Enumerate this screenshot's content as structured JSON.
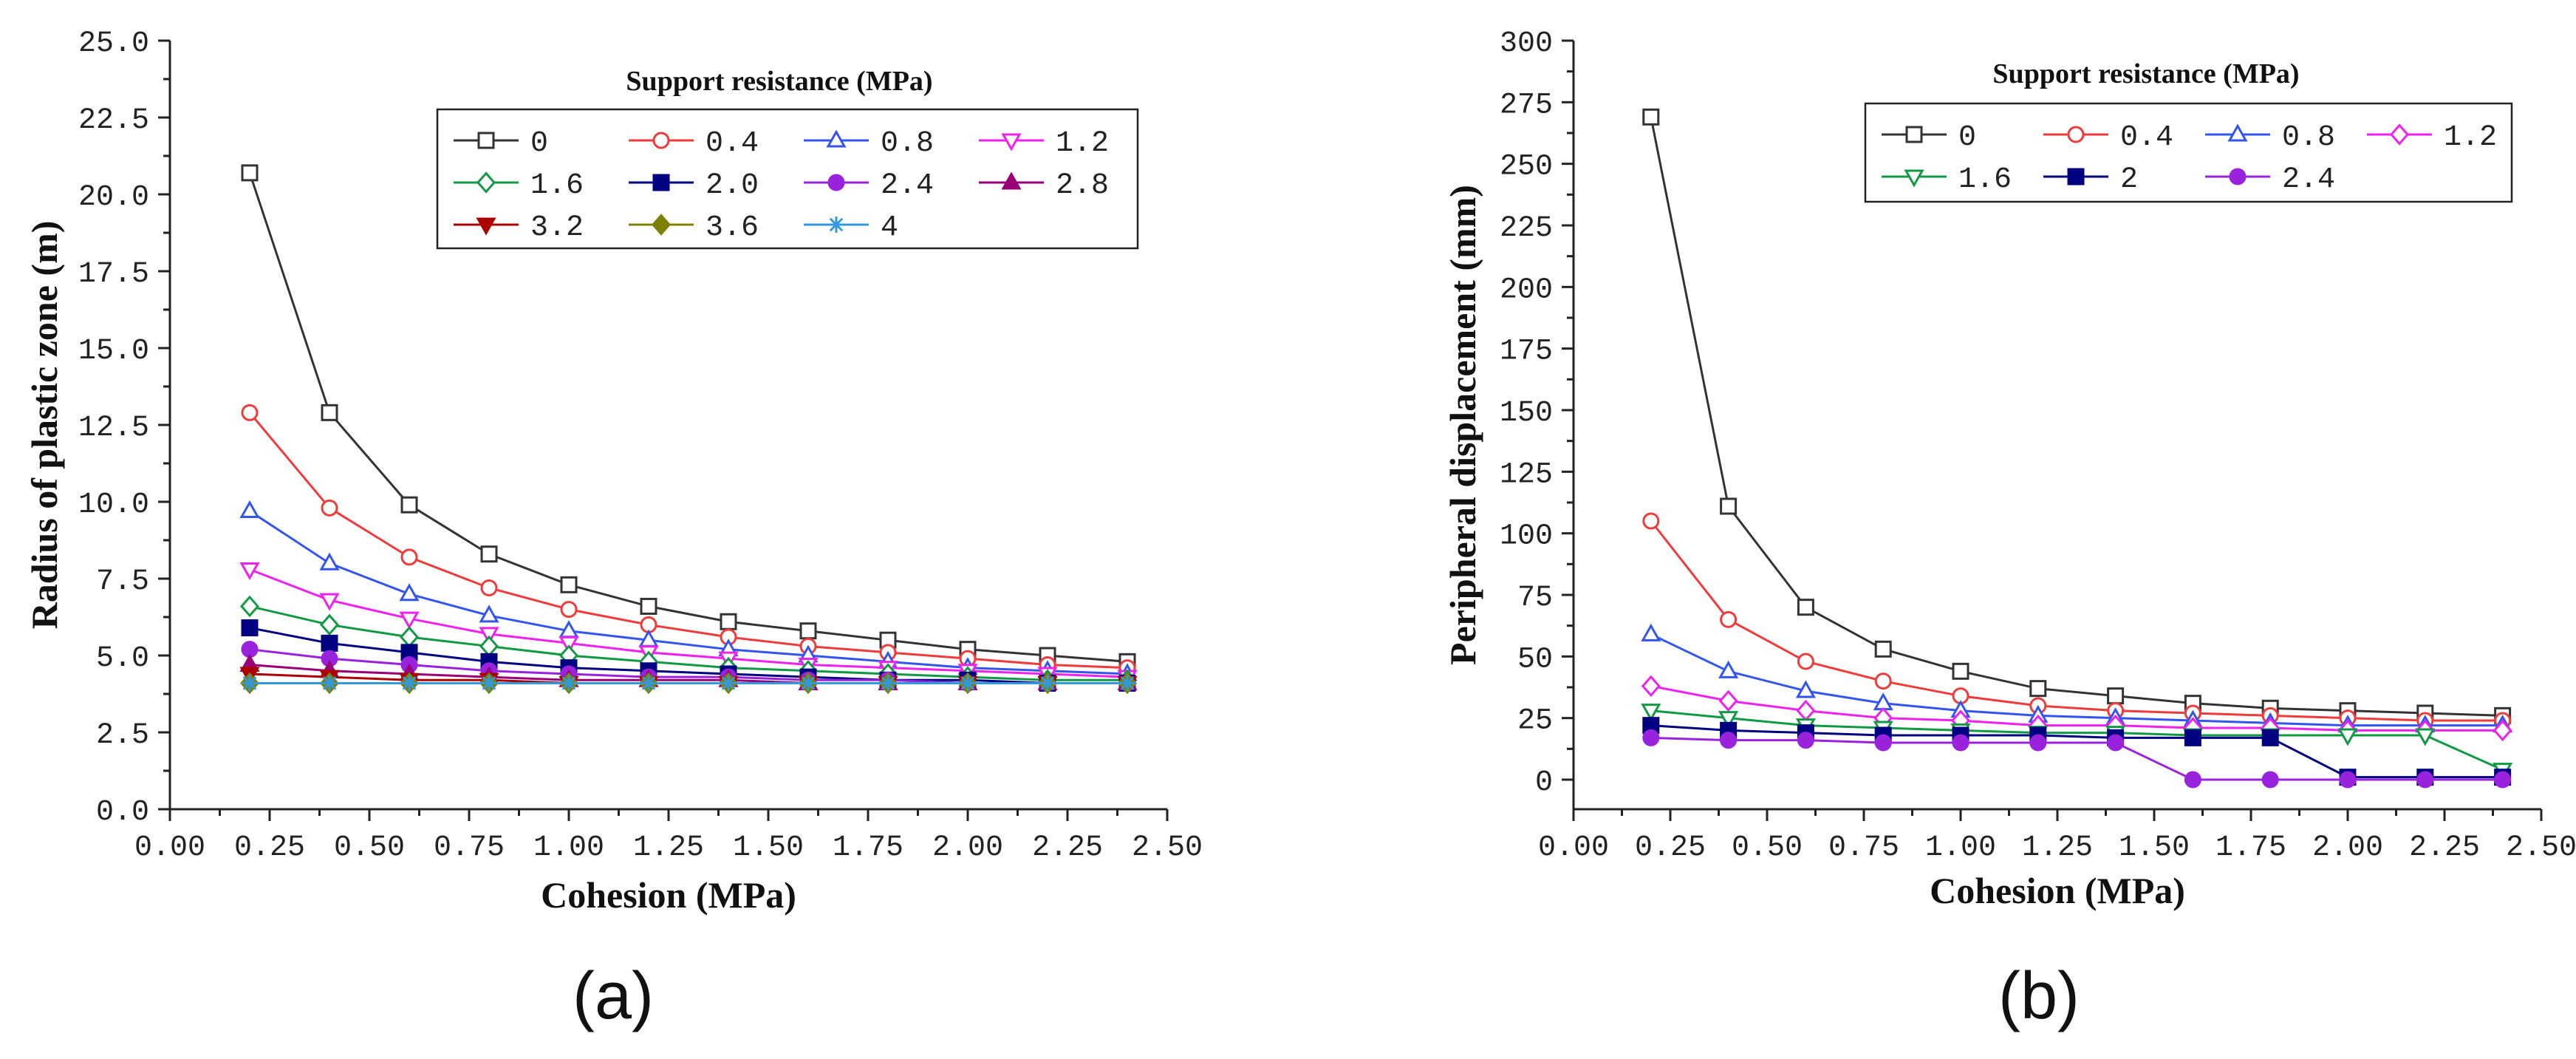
{
  "chart_data": [
    {
      "type": "line",
      "panel_label": "(a)",
      "xlabel": "Cohesion (MPa)",
      "ylabel": "Radius of plastic zone (m)",
      "xlim": [
        0,
        2.5
      ],
      "ylim": [
        0,
        25
      ],
      "x_ticks": [
        0,
        0.25,
        0.5,
        0.75,
        1.0,
        1.25,
        1.5,
        1.75,
        2.0,
        2.25,
        2.5
      ],
      "x_tick_labels": [
        "0.00",
        "0.25",
        "0.50",
        "0.75",
        "1.00",
        "1.25",
        "1.50",
        "1.75",
        "2.00",
        "2.25",
        "2.50"
      ],
      "y_ticks": [
        0,
        2.5,
        5,
        7.5,
        10,
        12.5,
        15,
        17.5,
        20,
        22.5,
        25
      ],
      "y_tick_labels": [
        "0.0",
        "2.5",
        "5.0",
        "7.5",
        "10.0",
        "12.5",
        "15.0",
        "17.5",
        "20.0",
        "22.5",
        "25.0"
      ],
      "legend_title": "Support resistance (MPa)",
      "legend_position": "top-right",
      "x": [
        0.2,
        0.4,
        0.6,
        0.8,
        1.0,
        1.2,
        1.4,
        1.6,
        1.8,
        2.0,
        2.2,
        2.4
      ],
      "series": [
        {
          "name": "0",
          "color": "#333333",
          "marker": "square-open",
          "values": [
            20.7,
            12.9,
            9.9,
            8.3,
            7.3,
            6.6,
            6.1,
            5.8,
            5.5,
            5.2,
            5.0,
            4.8
          ]
        },
        {
          "name": "0.4",
          "color": "#ee3b3b",
          "marker": "circle-open",
          "values": [
            12.9,
            9.8,
            8.2,
            7.2,
            6.5,
            6.0,
            5.6,
            5.3,
            5.1,
            4.9,
            4.7,
            4.6
          ]
        },
        {
          "name": "0.8",
          "color": "#3355ee",
          "marker": "triangle-up-open",
          "values": [
            9.7,
            8.0,
            7.0,
            6.3,
            5.8,
            5.5,
            5.2,
            5.0,
            4.8,
            4.6,
            4.5,
            4.4
          ]
        },
        {
          "name": "1.2",
          "color": "#ee22ee",
          "marker": "triangle-down-open",
          "values": [
            7.8,
            6.8,
            6.2,
            5.7,
            5.4,
            5.1,
            4.9,
            4.7,
            4.6,
            4.5,
            4.4,
            4.3
          ]
        },
        {
          "name": "1.6",
          "color": "#119944",
          "marker": "diamond-open",
          "values": [
            6.6,
            6.0,
            5.6,
            5.3,
            5.0,
            4.8,
            4.6,
            4.5,
            4.4,
            4.3,
            4.2,
            4.2
          ]
        },
        {
          "name": "2.0",
          "color": "#000080",
          "marker": "square-filled",
          "values": [
            5.9,
            5.4,
            5.1,
            4.8,
            4.6,
            4.5,
            4.4,
            4.3,
            4.2,
            4.2,
            4.1,
            4.1
          ]
        },
        {
          "name": "2.4",
          "color": "#9922dd",
          "marker": "circle-filled",
          "values": [
            5.2,
            4.9,
            4.7,
            4.5,
            4.4,
            4.3,
            4.3,
            4.2,
            4.2,
            4.1,
            4.1,
            4.1
          ]
        },
        {
          "name": "2.8",
          "color": "#990077",
          "marker": "triangle-up-filled",
          "values": [
            4.7,
            4.5,
            4.4,
            4.3,
            4.2,
            4.2,
            4.2,
            4.1,
            4.1,
            4.1,
            4.1,
            4.1
          ]
        },
        {
          "name": "3.2",
          "color": "#aa0000",
          "marker": "triangle-down-filled",
          "values": [
            4.4,
            4.3,
            4.2,
            4.2,
            4.1,
            4.1,
            4.1,
            4.1,
            4.1,
            4.1,
            4.1,
            4.1
          ]
        },
        {
          "name": "3.6",
          "color": "#808000",
          "marker": "diamond-filled",
          "values": [
            4.1,
            4.1,
            4.1,
            4.1,
            4.1,
            4.1,
            4.1,
            4.1,
            4.1,
            4.1,
            4.1,
            4.1
          ]
        },
        {
          "name": "4",
          "color": "#3399dd",
          "marker": "star",
          "values": [
            4.1,
            4.1,
            4.1,
            4.1,
            4.1,
            4.1,
            4.1,
            4.1,
            4.1,
            4.1,
            4.1,
            4.1
          ]
        }
      ]
    },
    {
      "type": "line",
      "panel_label": "(b)",
      "xlabel": "Cohesion (MPa)",
      "ylabel": "Peripheral displacement (mm)",
      "xlim": [
        0,
        2.5
      ],
      "ylim": [
        -12,
        300
      ],
      "x_ticks": [
        0,
        0.25,
        0.5,
        0.75,
        1.0,
        1.25,
        1.5,
        1.75,
        2.0,
        2.25,
        2.5
      ],
      "x_tick_labels": [
        "0.00",
        "0.25",
        "0.50",
        "0.75",
        "1.00",
        "1.25",
        "1.50",
        "1.75",
        "2.00",
        "2.25",
        "2.50"
      ],
      "y_ticks": [
        0,
        25,
        50,
        75,
        100,
        125,
        150,
        175,
        200,
        225,
        250,
        275,
        300
      ],
      "y_tick_labels": [
        "0",
        "25",
        "50",
        "75",
        "100",
        "125",
        "150",
        "175",
        "200",
        "225",
        "250",
        "275",
        "300"
      ],
      "legend_title": "Support resistance (MPa)",
      "legend_position": "top-right",
      "x": [
        0.2,
        0.4,
        0.6,
        0.8,
        1.0,
        1.2,
        1.4,
        1.6,
        1.8,
        2.0,
        2.2,
        2.4
      ],
      "series": [
        {
          "name": "0",
          "color": "#333333",
          "marker": "square-open",
          "values": [
            269,
            111,
            70,
            53,
            44,
            37,
            34,
            31,
            29,
            28,
            27,
            26
          ]
        },
        {
          "name": "0.4",
          "color": "#ee3b3b",
          "marker": "circle-open",
          "values": [
            105,
            65,
            48,
            40,
            34,
            30,
            28,
            27,
            26,
            25,
            24,
            24
          ]
        },
        {
          "name": "0.8",
          "color": "#3355ee",
          "marker": "triangle-up-open",
          "values": [
            59,
            44,
            36,
            31,
            28,
            26,
            25,
            24,
            23,
            22,
            22,
            22
          ]
        },
        {
          "name": "1.2",
          "color": "#ee22ee",
          "marker": "diamond-open",
          "values": [
            38,
            32,
            28,
            25,
            24,
            22,
            22,
            21,
            21,
            20,
            20,
            20
          ]
        },
        {
          "name": "1.6",
          "color": "#119944",
          "marker": "triangle-down-open",
          "values": [
            28,
            25,
            22,
            21,
            20,
            19,
            19,
            18,
            18,
            18,
            18,
            4
          ]
        },
        {
          "name": "2",
          "color": "#000080",
          "marker": "square-filled",
          "values": [
            22,
            20,
            19,
            18,
            18,
            18,
            17,
            17,
            17,
            1,
            1,
            1
          ]
        },
        {
          "name": "2.4",
          "color": "#9922dd",
          "marker": "circle-filled",
          "values": [
            17,
            16,
            16,
            15,
            15,
            15,
            15,
            0,
            0,
            0,
            0,
            0
          ]
        }
      ]
    }
  ]
}
